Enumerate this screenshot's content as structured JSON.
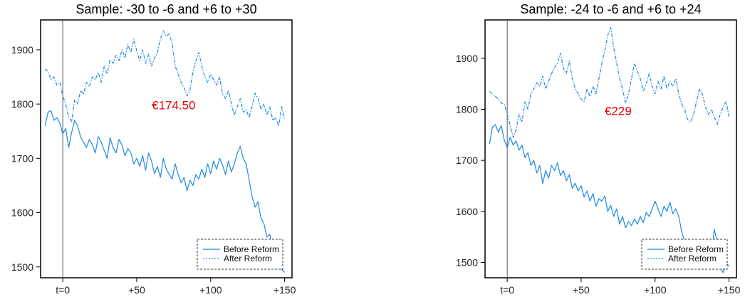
{
  "chart_data": [
    {
      "type": "line",
      "title": "Sample: -30 to -6 and +6 to +30",
      "xlabel": "",
      "ylabel": "",
      "xlim": [
        -15,
        155
      ],
      "ylim": [
        1480,
        1955
      ],
      "x_ticks": [
        {
          "value": 0,
          "label": "t=0"
        },
        {
          "value": 50,
          "label": "+50"
        },
        {
          "value": 100,
          "label": "+100"
        },
        {
          "value": 150,
          "label": "+150"
        }
      ],
      "y_ticks": [
        1500,
        1600,
        1700,
        1800,
        1900
      ],
      "vline_at": 0,
      "grid": false,
      "legend_position": "bottom-right",
      "annotation": {
        "text": "€174.50",
        "x": 75,
        "y": 1798,
        "color": "#e8000b"
      },
      "series": [
        {
          "name": "Before Reform",
          "style": "solid",
          "color": "#1e88e5",
          "x": [
            -12,
            -10,
            -8,
            -6,
            -4,
            -2,
            0,
            2,
            4,
            6,
            8,
            10,
            12,
            14,
            16,
            18,
            20,
            22,
            24,
            26,
            28,
            30,
            32,
            34,
            36,
            38,
            40,
            42,
            44,
            46,
            48,
            50,
            52,
            54,
            56,
            58,
            60,
            62,
            64,
            66,
            68,
            70,
            72,
            74,
            76,
            78,
            80,
            82,
            84,
            86,
            88,
            90,
            92,
            94,
            96,
            98,
            100,
            102,
            104,
            106,
            108,
            110,
            112,
            114,
            116,
            118,
            120,
            122,
            124,
            126,
            128,
            130,
            132,
            134,
            136,
            138,
            140,
            142,
            144,
            146,
            148,
            150
          ],
          "values": [
            1760,
            1785,
            1788,
            1770,
            1775,
            1765,
            1745,
            1755,
            1720,
            1748,
            1770,
            1760,
            1740,
            1730,
            1720,
            1735,
            1725,
            1710,
            1740,
            1730,
            1715,
            1700,
            1738,
            1720,
            1710,
            1735,
            1725,
            1705,
            1718,
            1710,
            1690,
            1700,
            1685,
            1705,
            1678,
            1710,
            1695,
            1672,
            1685,
            1665,
            1700,
            1680,
            1670,
            1662,
            1690,
            1670,
            1655,
            1665,
            1640,
            1660,
            1650,
            1670,
            1662,
            1680,
            1665,
            1690,
            1672,
            1695,
            1680,
            1700,
            1688,
            1670,
            1695,
            1675,
            1690,
            1710,
            1722,
            1700,
            1690,
            1660,
            1630,
            1610,
            1620,
            1590,
            1580,
            1555,
            1560,
            1530,
            1545,
            1510,
            1495,
            1490
          ]
        },
        {
          "name": "After Reform",
          "style": "dashdot",
          "color": "#1e88e5",
          "x": [
            -12,
            -10,
            -8,
            -6,
            -4,
            -2,
            0,
            2,
            4,
            6,
            8,
            10,
            12,
            14,
            16,
            18,
            20,
            22,
            24,
            26,
            28,
            30,
            32,
            34,
            36,
            38,
            40,
            42,
            44,
            46,
            48,
            50,
            52,
            54,
            56,
            58,
            60,
            62,
            64,
            66,
            68,
            70,
            72,
            74,
            76,
            78,
            80,
            82,
            84,
            86,
            88,
            90,
            92,
            94,
            96,
            98,
            100,
            102,
            104,
            106,
            108,
            110,
            112,
            114,
            116,
            118,
            120,
            122,
            124,
            126,
            128,
            130,
            132,
            134,
            136,
            138,
            140,
            142,
            144,
            146,
            148,
            150
          ],
          "values": [
            1865,
            1860,
            1845,
            1850,
            1835,
            1840,
            1815,
            1800,
            1775,
            1768,
            1808,
            1800,
            1825,
            1818,
            1840,
            1832,
            1850,
            1845,
            1858,
            1840,
            1870,
            1855,
            1882,
            1875,
            1890,
            1880,
            1900,
            1885,
            1910,
            1895,
            1920,
            1898,
            1880,
            1900,
            1875,
            1892,
            1870,
            1885,
            1895,
            1920,
            1935,
            1925,
            1930,
            1910,
            1870,
            1855,
            1840,
            1830,
            1815,
            1825,
            1860,
            1880,
            1895,
            1870,
            1850,
            1840,
            1855,
            1845,
            1835,
            1850,
            1820,
            1810,
            1825,
            1800,
            1780,
            1795,
            1810,
            1785,
            1790,
            1775,
            1795,
            1820,
            1810,
            1790,
            1800,
            1780,
            1795,
            1770,
            1775,
            1760,
            1795,
            1770
          ]
        }
      ]
    },
    {
      "type": "line",
      "title": "Sample: -24 to -6 and +6 to +24",
      "xlabel": "",
      "ylabel": "",
      "xlim": [
        -15,
        155
      ],
      "ylim": [
        1470,
        1975
      ],
      "x_ticks": [
        {
          "value": 0,
          "label": "t=0"
        },
        {
          "value": 50,
          "label": "+50"
        },
        {
          "value": 100,
          "label": "+100"
        },
        {
          "value": 150,
          "label": "+150"
        }
      ],
      "y_ticks": [
        1500,
        1600,
        1700,
        1800,
        1900
      ],
      "vline_at": 0,
      "grid": false,
      "legend_position": "bottom-right",
      "annotation": {
        "text": "€229",
        "x": 75,
        "y": 1797,
        "color": "#e8000b"
      },
      "series": [
        {
          "name": "Before Reform",
          "style": "solid",
          "color": "#1e88e5",
          "x": [
            -12,
            -10,
            -8,
            -6,
            -4,
            -2,
            0,
            2,
            4,
            6,
            8,
            10,
            12,
            14,
            16,
            18,
            20,
            22,
            24,
            26,
            28,
            30,
            32,
            34,
            36,
            38,
            40,
            42,
            44,
            46,
            48,
            50,
            52,
            54,
            56,
            58,
            60,
            62,
            64,
            66,
            68,
            70,
            72,
            74,
            76,
            78,
            80,
            82,
            84,
            86,
            88,
            90,
            92,
            94,
            96,
            98,
            100,
            102,
            104,
            106,
            108,
            110,
            112,
            114,
            116,
            118,
            120,
            122,
            124,
            126,
            128,
            130,
            132,
            134,
            136,
            138,
            140,
            142,
            144,
            146,
            148,
            150
          ],
          "values": [
            1732,
            1765,
            1770,
            1755,
            1768,
            1740,
            1725,
            1745,
            1730,
            1738,
            1720,
            1730,
            1705,
            1715,
            1690,
            1700,
            1675,
            1690,
            1655,
            1680,
            1665,
            1690,
            1680,
            1695,
            1670,
            1680,
            1660,
            1672,
            1645,
            1655,
            1640,
            1650,
            1628,
            1640,
            1620,
            1635,
            1610,
            1625,
            1620,
            1630,
            1600,
            1612,
            1590,
            1605,
            1575,
            1590,
            1568,
            1580,
            1572,
            1585,
            1575,
            1590,
            1578,
            1598,
            1590,
            1605,
            1620,
            1605,
            1590,
            1610,
            1600,
            1618,
            1595,
            1605,
            1590,
            1560,
            1540,
            1520,
            1530,
            1510,
            1520,
            1500,
            1525,
            1510,
            1540,
            1515,
            1565,
            1540,
            1490,
            1480,
            1500,
            1492
          ]
        },
        {
          "name": "After Reform",
          "style": "dashdot",
          "color": "#1e88e5",
          "x": [
            -12,
            -10,
            -8,
            -6,
            -4,
            -2,
            0,
            2,
            4,
            6,
            8,
            10,
            12,
            14,
            16,
            18,
            20,
            22,
            24,
            26,
            28,
            30,
            32,
            34,
            36,
            38,
            40,
            42,
            44,
            46,
            48,
            50,
            52,
            54,
            56,
            58,
            60,
            62,
            64,
            66,
            68,
            70,
            72,
            74,
            76,
            78,
            80,
            82,
            84,
            86,
            88,
            90,
            92,
            94,
            96,
            98,
            100,
            102,
            104,
            106,
            108,
            110,
            112,
            114,
            116,
            118,
            120,
            122,
            124,
            126,
            128,
            130,
            132,
            134,
            136,
            138,
            140,
            142,
            144,
            146,
            148,
            150
          ],
          "values": [
            1835,
            1830,
            1825,
            1820,
            1812,
            1810,
            1790,
            1768,
            1745,
            1760,
            1790,
            1775,
            1815,
            1800,
            1830,
            1840,
            1852,
            1845,
            1865,
            1840,
            1855,
            1870,
            1882,
            1890,
            1910,
            1880,
            1870,
            1895,
            1860,
            1840,
            1830,
            1820,
            1815,
            1840,
            1825,
            1845,
            1830,
            1860,
            1890,
            1915,
            1945,
            1960,
            1920,
            1890,
            1860,
            1840,
            1812,
            1830,
            1860,
            1890,
            1875,
            1860,
            1835,
            1850,
            1870,
            1845,
            1830,
            1855,
            1840,
            1865,
            1840,
            1855,
            1845,
            1860,
            1830,
            1810,
            1800,
            1780,
            1775,
            1790,
            1815,
            1840,
            1830,
            1805,
            1790,
            1800,
            1785,
            1770,
            1790,
            1805,
            1815,
            1785
          ]
        }
      ]
    }
  ]
}
